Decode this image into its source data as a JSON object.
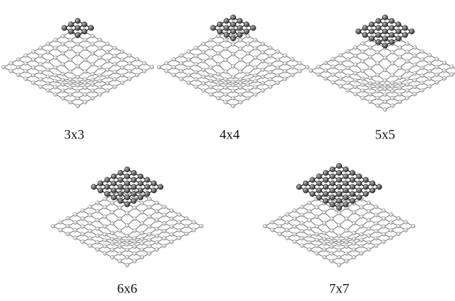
{
  "panels": [
    {
      "label": "3x3"
    },
    {
      "label": "4x4"
    },
    {
      "label": "5x5"
    },
    {
      "label": "6x6"
    },
    {
      "label": "7x7"
    }
  ]
}
